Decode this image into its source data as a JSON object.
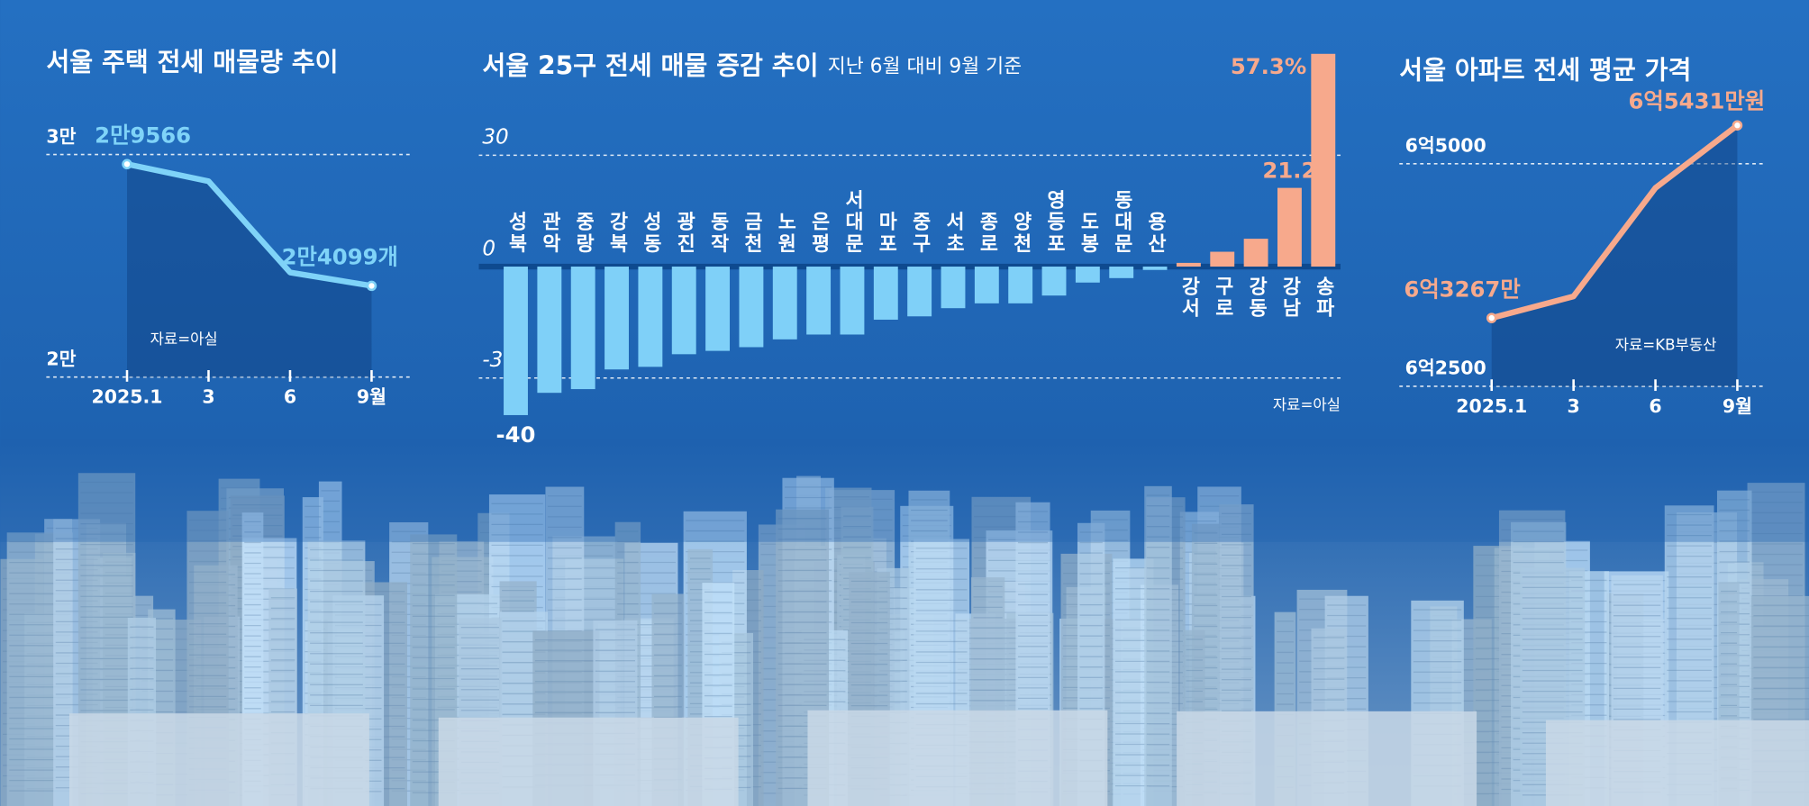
{
  "chart_data": [
    {
      "type": "line",
      "title": "서울 주택 전세 매물량 추이",
      "source": "자료=아실",
      "categories": [
        "2025.1",
        "3",
        "6",
        "9월"
      ],
      "values": [
        29566,
        28800,
        24700,
        24099
      ],
      "value_labels": [
        "2만9566",
        null,
        null,
        "2만4099개"
      ],
      "color": "#7fd3f8",
      "ylim": [
        20000,
        30000
      ],
      "yticks": [
        {
          "value": 30000,
          "label": "3만"
        },
        {
          "value": 20000,
          "label": "2만"
        }
      ],
      "grid": true
    },
    {
      "type": "bar",
      "title": "서울 25구 전세 매물 증감 추이",
      "subtitle": "지난 6월 대비 9월 기준",
      "source": "자료=아실",
      "categories": [
        "성북",
        "관악",
        "중랑",
        "강북",
        "성동",
        "광진",
        "동작",
        "금천",
        "노원",
        "은평",
        "서대문",
        "마포",
        "중구",
        "서초",
        "종로",
        "양천",
        "영등포",
        "도봉",
        "동대문",
        "용산",
        "강서",
        "구로",
        "강동",
        "강남",
        "송파"
      ],
      "values": [
        -40,
        -34,
        -33,
        -27.7,
        -27,
        -23.6,
        -22.7,
        -21.7,
        -19.6,
        -18.3,
        -18.3,
        -14.3,
        -13.4,
        -11.2,
        -9.9,
        -9.9,
        -7.8,
        -4.3,
        -3.1,
        -0.9,
        1,
        4,
        7.5,
        21.2,
        57.3
      ],
      "value_labels": [
        "-40",
        null,
        null,
        null,
        null,
        null,
        null,
        null,
        null,
        null,
        null,
        null,
        null,
        null,
        null,
        null,
        null,
        null,
        null,
        null,
        null,
        null,
        null,
        "21.2",
        "57.3%"
      ],
      "colors": {
        "negative": "#7fd0f8",
        "positive": "#f7a98c"
      },
      "ylim": [
        -40,
        60
      ],
      "yticks": [
        30,
        0,
        -30
      ],
      "grid": true
    },
    {
      "type": "line",
      "title": "서울 아파트 전세 평균 가격",
      "source": "자료=KB부동산",
      "categories": [
        "2025.1",
        "3",
        "6",
        "9월"
      ],
      "values": [
        63267,
        63510,
        64728,
        65431
      ],
      "value_labels": [
        "6억3267만",
        null,
        null,
        "6억5431만원"
      ],
      "color": "#f7a98c",
      "ylim": [
        62500,
        65500
      ],
      "yticks": [
        {
          "value": 65000,
          "label": "6억5000"
        },
        {
          "value": 62500,
          "label": "6억2500"
        }
      ],
      "grid": true
    }
  ]
}
